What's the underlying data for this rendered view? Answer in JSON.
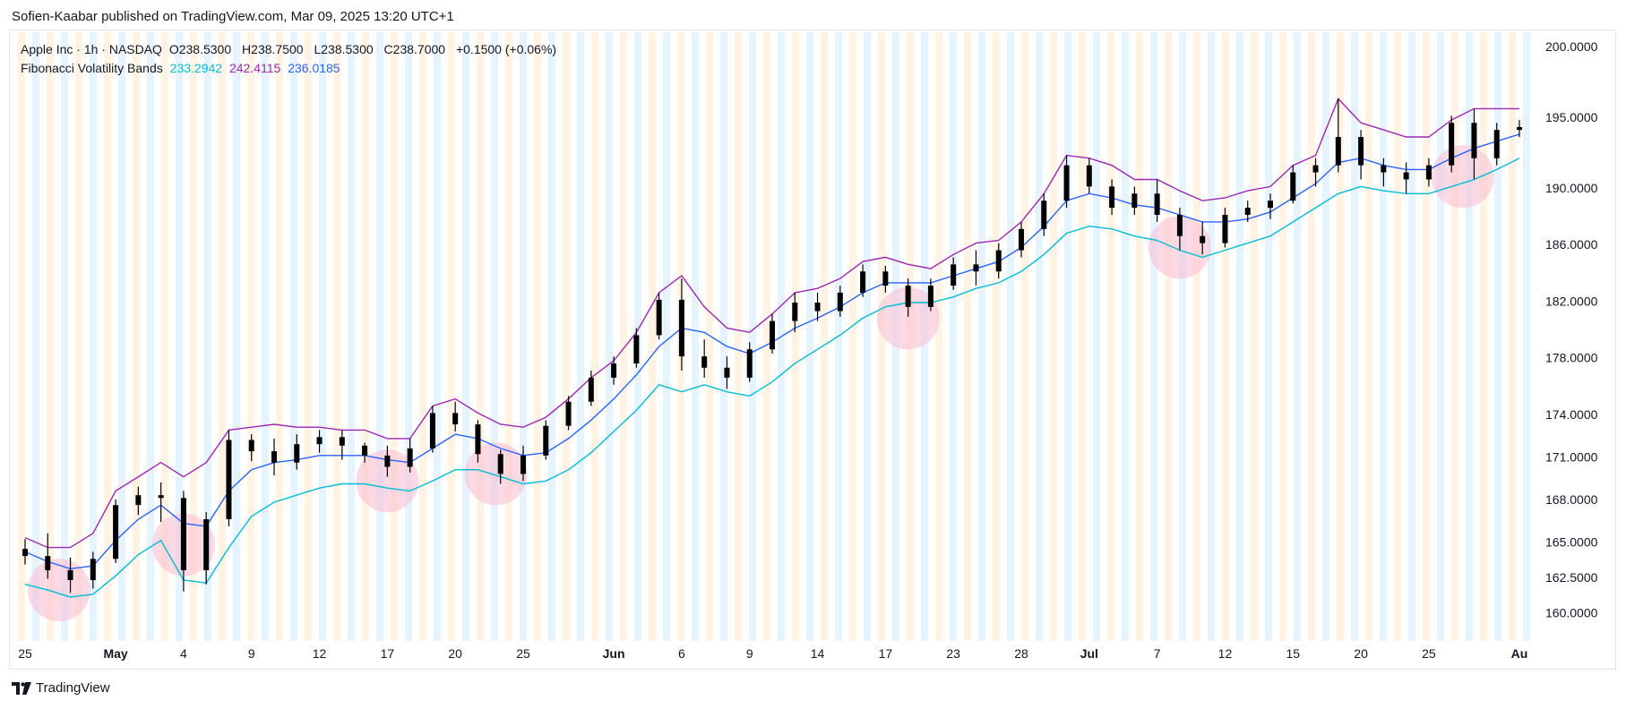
{
  "header": {
    "published_text": "Sofien-Kaabar published on TradingView.com, Mar 09, 2025 13:20 UTC+1"
  },
  "legend": {
    "symbol_line": "Apple Inc · 1h · NASDAQ",
    "open_label": "O",
    "open_value": "238.5300",
    "high_label": "H",
    "high_value": "238.7500",
    "low_label": "L",
    "low_value": "238.5300",
    "close_label": "C",
    "close_value": "238.7000",
    "change": "+0.1500 (+0.06%)",
    "indicator_name": "Fibonacci Volatility Bands",
    "band_lower_value": "233.2942",
    "band_upper_value": "242.4115",
    "band_mid_value": "236.0185"
  },
  "footer": {
    "brand": "TradingView",
    "logo_icon": "tradingview-logo-icon"
  },
  "colors": {
    "upper_band": "#9c27b0",
    "mid_band": "#2962ff",
    "lower_band": "#00bcd4",
    "candles": "#000000",
    "highlight_circle": "#f8bbd0",
    "session_stripe_a": "#fff3e0",
    "session_stripe_b": "#e3f2fd"
  },
  "chart_data": {
    "type": "candlestick",
    "title": "Apple Inc · 1h · NASDAQ",
    "ylim": [
      158.0,
      201.0
    ],
    "y_ticks": [
      "200.0000",
      "195.0000",
      "190.0000",
      "186.0000",
      "182.0000",
      "178.0000",
      "174.0000",
      "171.0000",
      "168.0000",
      "165.0000",
      "162.5000",
      "160.0000"
    ],
    "x_ticks": [
      {
        "label": "25",
        "bold": false,
        "i": 0
      },
      {
        "label": "May",
        "bold": true,
        "i": 4
      },
      {
        "label": "4",
        "bold": false,
        "i": 7
      },
      {
        "label": "9",
        "bold": false,
        "i": 10
      },
      {
        "label": "12",
        "bold": false,
        "i": 13
      },
      {
        "label": "17",
        "bold": false,
        "i": 16
      },
      {
        "label": "20",
        "bold": false,
        "i": 19
      },
      {
        "label": "25",
        "bold": false,
        "i": 22
      },
      {
        "label": "Jun",
        "bold": true,
        "i": 26
      },
      {
        "label": "6",
        "bold": false,
        "i": 29
      },
      {
        "label": "9",
        "bold": false,
        "i": 32
      },
      {
        "label": "14",
        "bold": false,
        "i": 35
      },
      {
        "label": "17",
        "bold": false,
        "i": 38
      },
      {
        "label": "23",
        "bold": false,
        "i": 41
      },
      {
        "label": "28",
        "bold": false,
        "i": 44
      },
      {
        "label": "Jul",
        "bold": true,
        "i": 47
      },
      {
        "label": "7",
        "bold": false,
        "i": 50
      },
      {
        "label": "12",
        "bold": false,
        "i": 53
      },
      {
        "label": "15",
        "bold": false,
        "i": 56
      },
      {
        "label": "20",
        "bold": false,
        "i": 59
      },
      {
        "label": "25",
        "bold": false,
        "i": 62
      },
      {
        "label": "Au",
        "bold": true,
        "i": 66
      }
    ],
    "x_count": 66,
    "candles": [
      {
        "x": 0,
        "o": 164.5,
        "h": 165.2,
        "l": 163.4,
        "c": 164.0
      },
      {
        "x": 1,
        "o": 164.0,
        "h": 165.6,
        "l": 162.4,
        "c": 163.0
      },
      {
        "x": 2,
        "o": 163.0,
        "h": 163.9,
        "l": 161.4,
        "c": 162.3
      },
      {
        "x": 3,
        "o": 162.3,
        "h": 164.3,
        "l": 161.7,
        "c": 163.8
      },
      {
        "x": 4,
        "o": 163.8,
        "h": 168.0,
        "l": 163.5,
        "c": 167.6
      },
      {
        "x": 5,
        "o": 167.6,
        "h": 168.9,
        "l": 166.9,
        "c": 168.3
      },
      {
        "x": 6,
        "o": 168.3,
        "h": 169.2,
        "l": 166.4,
        "c": 168.1
      },
      {
        "x": 7,
        "o": 168.1,
        "h": 168.6,
        "l": 161.5,
        "c": 163.0
      },
      {
        "x": 8,
        "o": 163.0,
        "h": 167.1,
        "l": 162.0,
        "c": 166.6
      },
      {
        "x": 9,
        "o": 166.6,
        "h": 172.9,
        "l": 166.1,
        "c": 172.2
      },
      {
        "x": 10,
        "o": 172.2,
        "h": 172.6,
        "l": 170.7,
        "c": 171.4
      },
      {
        "x": 11,
        "o": 171.4,
        "h": 172.3,
        "l": 169.7,
        "c": 170.6
      },
      {
        "x": 12,
        "o": 170.6,
        "h": 172.6,
        "l": 170.1,
        "c": 171.9
      },
      {
        "x": 13,
        "o": 171.9,
        "h": 172.9,
        "l": 171.3,
        "c": 172.4
      },
      {
        "x": 14,
        "o": 172.4,
        "h": 172.9,
        "l": 170.8,
        "c": 171.8
      },
      {
        "x": 15,
        "o": 171.8,
        "h": 172.0,
        "l": 170.6,
        "c": 171.1
      },
      {
        "x": 16,
        "o": 171.1,
        "h": 171.8,
        "l": 169.6,
        "c": 170.3
      },
      {
        "x": 17,
        "o": 170.3,
        "h": 172.3,
        "l": 169.9,
        "c": 171.6
      },
      {
        "x": 18,
        "o": 171.6,
        "h": 174.6,
        "l": 171.3,
        "c": 174.1
      },
      {
        "x": 19,
        "o": 174.1,
        "h": 174.9,
        "l": 172.8,
        "c": 173.3
      },
      {
        "x": 20,
        "o": 173.3,
        "h": 173.6,
        "l": 170.6,
        "c": 171.2
      },
      {
        "x": 21,
        "o": 171.2,
        "h": 171.5,
        "l": 169.1,
        "c": 169.8
      },
      {
        "x": 22,
        "o": 169.8,
        "h": 171.8,
        "l": 169.3,
        "c": 171.1
      },
      {
        "x": 23,
        "o": 171.1,
        "h": 173.6,
        "l": 170.8,
        "c": 173.2
      },
      {
        "x": 24,
        "o": 173.2,
        "h": 175.3,
        "l": 172.9,
        "c": 174.9
      },
      {
        "x": 25,
        "o": 174.9,
        "h": 177.1,
        "l": 174.6,
        "c": 176.6
      },
      {
        "x": 26,
        "o": 176.6,
        "h": 178.1,
        "l": 176.1,
        "c": 177.6
      },
      {
        "x": 27,
        "o": 177.6,
        "h": 180.1,
        "l": 177.3,
        "c": 179.6
      },
      {
        "x": 28,
        "o": 179.6,
        "h": 182.6,
        "l": 179.3,
        "c": 182.1
      },
      {
        "x": 29,
        "o": 182.1,
        "h": 183.6,
        "l": 177.1,
        "c": 178.1
      },
      {
        "x": 30,
        "o": 178.1,
        "h": 179.3,
        "l": 176.6,
        "c": 177.3
      },
      {
        "x": 31,
        "o": 177.3,
        "h": 178.1,
        "l": 175.8,
        "c": 176.6
      },
      {
        "x": 32,
        "o": 176.6,
        "h": 179.1,
        "l": 176.3,
        "c": 178.6
      },
      {
        "x": 33,
        "o": 178.6,
        "h": 181.1,
        "l": 178.3,
        "c": 180.6
      },
      {
        "x": 34,
        "o": 180.6,
        "h": 182.6,
        "l": 179.8,
        "c": 181.9
      },
      {
        "x": 35,
        "o": 181.9,
        "h": 182.6,
        "l": 180.6,
        "c": 181.3
      },
      {
        "x": 36,
        "o": 181.3,
        "h": 183.1,
        "l": 180.9,
        "c": 182.6
      },
      {
        "x": 37,
        "o": 182.6,
        "h": 184.6,
        "l": 182.3,
        "c": 184.1
      },
      {
        "x": 38,
        "o": 184.1,
        "h": 184.5,
        "l": 182.6,
        "c": 183.1
      },
      {
        "x": 39,
        "o": 183.1,
        "h": 183.6,
        "l": 180.9,
        "c": 181.6
      },
      {
        "x": 40,
        "o": 181.6,
        "h": 183.6,
        "l": 181.3,
        "c": 183.1
      },
      {
        "x": 41,
        "o": 183.1,
        "h": 185.1,
        "l": 182.8,
        "c": 184.6
      },
      {
        "x": 42,
        "o": 184.6,
        "h": 185.6,
        "l": 183.1,
        "c": 184.1
      },
      {
        "x": 43,
        "o": 184.1,
        "h": 186.1,
        "l": 183.6,
        "c": 185.6
      },
      {
        "x": 44,
        "o": 185.6,
        "h": 187.6,
        "l": 185.1,
        "c": 187.1
      },
      {
        "x": 45,
        "o": 187.1,
        "h": 189.6,
        "l": 186.6,
        "c": 189.1
      },
      {
        "x": 46,
        "o": 189.1,
        "h": 192.3,
        "l": 188.6,
        "c": 191.6
      },
      {
        "x": 47,
        "o": 191.6,
        "h": 192.1,
        "l": 189.6,
        "c": 190.1
      },
      {
        "x": 48,
        "o": 190.1,
        "h": 190.6,
        "l": 188.1,
        "c": 188.6
      },
      {
        "x": 49,
        "o": 188.6,
        "h": 190.1,
        "l": 188.1,
        "c": 189.6
      },
      {
        "x": 50,
        "o": 189.6,
        "h": 190.6,
        "l": 187.6,
        "c": 188.1
      },
      {
        "x": 51,
        "o": 188.1,
        "h": 188.6,
        "l": 185.6,
        "c": 186.6
      },
      {
        "x": 52,
        "o": 186.6,
        "h": 187.6,
        "l": 185.3,
        "c": 186.1
      },
      {
        "x": 53,
        "o": 186.1,
        "h": 188.6,
        "l": 185.8,
        "c": 188.1
      },
      {
        "x": 54,
        "o": 188.1,
        "h": 189.1,
        "l": 187.6,
        "c": 188.6
      },
      {
        "x": 55,
        "o": 188.6,
        "h": 189.6,
        "l": 187.8,
        "c": 189.1
      },
      {
        "x": 56,
        "o": 189.1,
        "h": 191.6,
        "l": 188.9,
        "c": 191.1
      },
      {
        "x": 57,
        "o": 191.1,
        "h": 192.1,
        "l": 190.1,
        "c": 191.6
      },
      {
        "x": 58,
        "o": 191.6,
        "h": 196.3,
        "l": 191.1,
        "c": 193.6
      },
      {
        "x": 59,
        "o": 193.6,
        "h": 194.1,
        "l": 190.6,
        "c": 191.6
      },
      {
        "x": 60,
        "o": 191.6,
        "h": 192.1,
        "l": 190.1,
        "c": 191.1
      },
      {
        "x": 61,
        "o": 191.1,
        "h": 191.8,
        "l": 189.6,
        "c": 190.6
      },
      {
        "x": 62,
        "o": 190.6,
        "h": 192.1,
        "l": 190.1,
        "c": 191.6
      },
      {
        "x": 63,
        "o": 191.6,
        "h": 195.1,
        "l": 191.1,
        "c": 194.6
      },
      {
        "x": 64,
        "o": 194.6,
        "h": 195.6,
        "l": 190.6,
        "c": 192.1
      },
      {
        "x": 65,
        "o": 192.1,
        "h": 194.6,
        "l": 191.6,
        "c": 194.1
      },
      {
        "x": 66,
        "o": 194.1,
        "h": 194.8,
        "l": 193.6,
        "c": 194.3
      }
    ],
    "upper_band": [
      165.3,
      164.6,
      164.6,
      165.6,
      168.6,
      169.6,
      170.6,
      169.6,
      170.6,
      172.9,
      173.1,
      173.3,
      173.1,
      173.1,
      172.9,
      172.9,
      172.3,
      172.3,
      174.6,
      175.1,
      174.1,
      173.3,
      173.1,
      173.8,
      175.1,
      176.6,
      177.8,
      179.8,
      182.6,
      183.8,
      181.6,
      180.1,
      179.8,
      181.1,
      182.6,
      182.9,
      183.6,
      184.8,
      185.1,
      184.6,
      184.3,
      185.3,
      186.1,
      186.3,
      187.6,
      189.6,
      192.3,
      192.1,
      191.6,
      190.6,
      190.6,
      189.8,
      189.1,
      189.3,
      189.8,
      190.1,
      191.6,
      192.3,
      196.3,
      194.6,
      194.1,
      193.6,
      193.6,
      194.8,
      195.6,
      195.6,
      195.6
    ],
    "mid_band": [
      164.3,
      163.6,
      163.1,
      163.3,
      165.1,
      166.6,
      167.6,
      166.3,
      166.1,
      168.6,
      170.1,
      170.6,
      170.8,
      171.1,
      171.1,
      171.1,
      170.8,
      170.6,
      171.6,
      172.6,
      172.3,
      171.6,
      171.1,
      171.3,
      172.3,
      173.6,
      175.1,
      176.8,
      178.8,
      180.1,
      179.8,
      178.8,
      178.3,
      179.1,
      180.1,
      180.8,
      181.6,
      182.6,
      183.3,
      183.3,
      183.3,
      183.8,
      184.3,
      184.8,
      185.8,
      187.3,
      189.1,
      189.6,
      189.3,
      188.8,
      188.6,
      188.1,
      187.6,
      187.6,
      187.8,
      188.3,
      189.3,
      190.3,
      191.8,
      192.1,
      191.6,
      191.3,
      191.3,
      192.1,
      192.8,
      193.3,
      193.8
    ],
    "lower_band": [
      162.0,
      161.6,
      161.1,
      161.3,
      162.6,
      164.1,
      165.1,
      162.3,
      162.1,
      164.6,
      166.8,
      167.8,
      168.3,
      168.8,
      169.1,
      169.1,
      168.8,
      168.6,
      169.3,
      170.1,
      170.1,
      169.6,
      169.1,
      169.3,
      170.1,
      171.3,
      172.8,
      174.3,
      176.1,
      175.6,
      176.1,
      175.6,
      175.3,
      176.3,
      177.6,
      178.6,
      179.6,
      180.8,
      181.6,
      181.9,
      181.9,
      182.3,
      182.9,
      183.3,
      184.1,
      185.3,
      186.8,
      187.3,
      187.1,
      186.6,
      186.3,
      185.6,
      185.1,
      185.6,
      186.1,
      186.6,
      187.6,
      188.6,
      189.6,
      190.1,
      189.8,
      189.6,
      189.6,
      190.1,
      190.6,
      191.3,
      192.1
    ],
    "highlight_circles": [
      {
        "x": 1.5,
        "y": 161.6
      },
      {
        "x": 7,
        "y": 164.8
      },
      {
        "x": 16,
        "y": 169.3
      },
      {
        "x": 20.8,
        "y": 169.8
      },
      {
        "x": 39,
        "y": 180.8
      },
      {
        "x": 51,
        "y": 185.8
      },
      {
        "x": 63.5,
        "y": 190.8
      }
    ]
  }
}
